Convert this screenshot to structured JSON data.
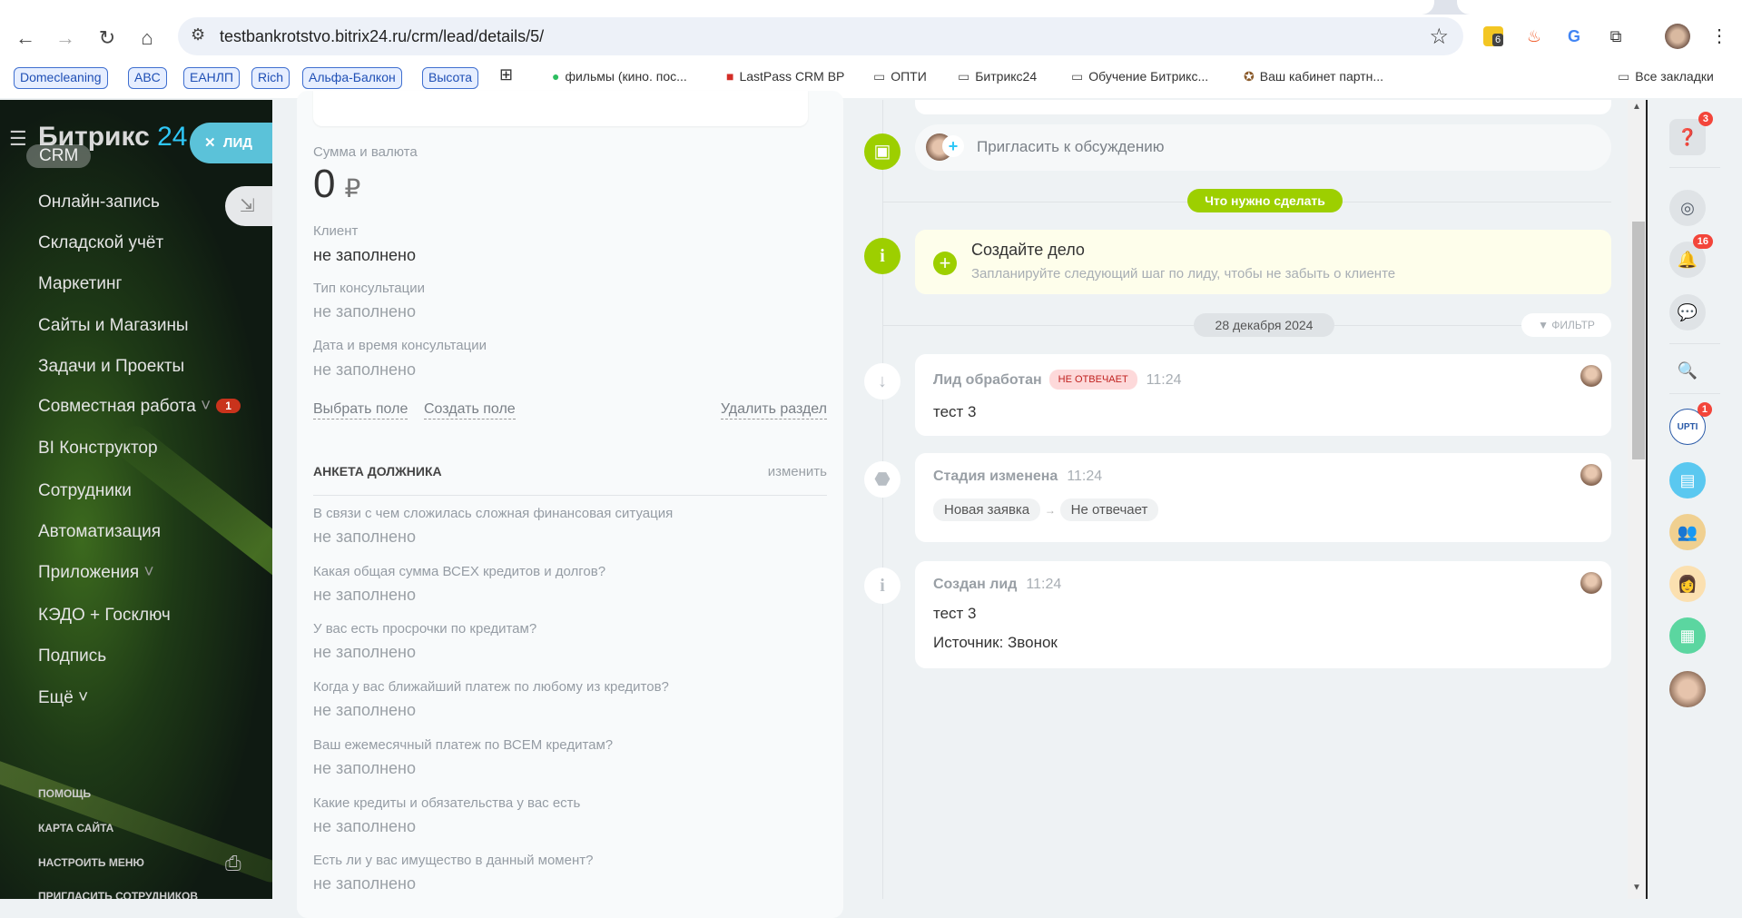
{
  "browser": {
    "url": "testbankrotstvo.bitrix24.ru/crm/lead/details/5/",
    "extension_badge": "6",
    "bookmark_chips": [
      "Domecleaning",
      "ABC",
      "ЕАНЛП",
      "Rich",
      "Альфа-Балкон",
      "Высота"
    ],
    "bookmarks": [
      {
        "icon": "evernote-icon",
        "label": "фильмы (кино. пос..."
      },
      {
        "icon": "lastpass-icon",
        "label": "LastPass CRM BP"
      },
      {
        "icon": "folder-icon",
        "label": "ОПТИ"
      },
      {
        "icon": "folder-icon",
        "label": "Битрикс24"
      },
      {
        "icon": "folder-icon",
        "label": "Обучение Битрикс..."
      },
      {
        "icon": "partner-icon",
        "label": "Ваш кабинет партн..."
      }
    ],
    "all_bookmarks": "Все закладки"
  },
  "sidebar": {
    "logo_text": "Битрикс",
    "logo_num": "24",
    "slider_label": "ЛИД",
    "items": [
      {
        "label": "CRM"
      },
      {
        "label": "Онлайн-запись"
      },
      {
        "label": "Складской учёт"
      },
      {
        "label": "Маркетинг"
      },
      {
        "label": "Сайты и Магазины"
      },
      {
        "label": "Задачи и Проекты"
      },
      {
        "label": "Совместная работа",
        "chevron": true,
        "badge": "1"
      },
      {
        "label": "BI Конструктор"
      },
      {
        "label": "Сотрудники"
      },
      {
        "label": "Автоматизация"
      },
      {
        "label": "Приложения",
        "chevron": true
      },
      {
        "label": "КЭДО + Госключ"
      },
      {
        "label": "Подпись"
      },
      {
        "label": "Ещё ˅"
      }
    ],
    "footer": [
      "Помощь",
      "Карта сайта",
      "Настроить меню",
      "Пригласить сотрудников"
    ]
  },
  "lead": {
    "amount_label": "Сумма и валюта",
    "amount": "0",
    "currency": "₽",
    "fields": [
      {
        "label": "Клиент",
        "value": "не заполнено"
      },
      {
        "label": "Тип консультации",
        "value": "не заполнено"
      },
      {
        "label": "Дата и время консультации",
        "value": "не заполнено"
      }
    ],
    "select_field": "Выбрать поле",
    "create_field": "Создать поле",
    "delete_section": "Удалить раздел",
    "questionnaire": {
      "title": "АНКЕТА ДОЛЖНИКА",
      "edit": "изменить",
      "fields": [
        {
          "label": "В связи с чем сложилась сложная финансовая ситуация",
          "value": "не заполнено"
        },
        {
          "label": "Какая общая сумма ВСЕХ кредитов и долгов?",
          "value": "не заполнено"
        },
        {
          "label": "У вас есть просрочки по кредитам?",
          "value": "не заполнено"
        },
        {
          "label": "Когда у вас ближайший платеж по любому из кредитов?",
          "value": "не заполнено"
        },
        {
          "label": "Ваш ежемесячный платеж по ВСЕМ кредитам?",
          "value": "не заполнено"
        },
        {
          "label": "Какие кредиты и обязательства у вас есть",
          "value": "не заполнено"
        },
        {
          "label": "Есть ли у вас имущество в данный момент?",
          "value": "не заполнено"
        }
      ]
    }
  },
  "timeline": {
    "invite": "Пригласить к обсуждению",
    "todo_label": "Что нужно сделать",
    "create_task_title": "Создайте дело",
    "create_task_hint": "Запланируйте следующий шаг по лиду, чтобы не забыть о клиенте",
    "date": "28 декабря 2024",
    "filter": "ФИЛЬТР",
    "events": [
      {
        "title": "Лид обработан",
        "badge": "НЕ ОТВЕЧАЕТ",
        "time": "11:24",
        "body": [
          "тест 3"
        ]
      },
      {
        "title": "Стадия изменена",
        "time": "11:24",
        "stage_from": "Новая заявка",
        "stage_to": "Не отвечает"
      },
      {
        "title": "Создан лид",
        "time": "11:24",
        "body": [
          "тест 3",
          "Источник: Звонок"
        ]
      }
    ]
  },
  "right_panel": {
    "help_badge": "3",
    "notifications_badge": "16",
    "app_badge": "1",
    "app_label": "UPTI"
  },
  "colors": {
    "accent_green": "#9dcf00",
    "bitrix_blue": "#2fc7f7",
    "slider_tab": "#5bc2d9",
    "badge_red": "#f3453a"
  }
}
